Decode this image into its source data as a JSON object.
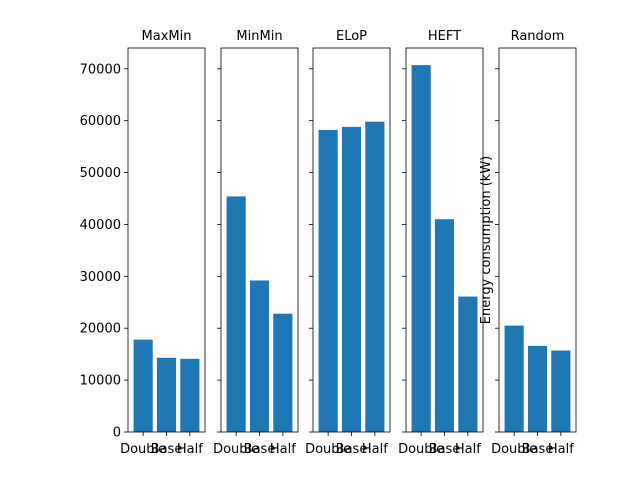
{
  "chart_data": {
    "type": "bar",
    "categories": [
      "Double",
      "Base",
      "Half"
    ],
    "bar_color": "#1f77b4",
    "ylim": [
      0,
      74000
    ],
    "yticks": [
      0,
      10000,
      20000,
      30000,
      40000,
      50000,
      60000,
      70000
    ],
    "ylabel": "Energy consumption (kW)",
    "panels": [
      {
        "title": "MaxMin",
        "values": [
          17800,
          14300,
          14100
        ]
      },
      {
        "title": "MinMin",
        "values": [
          45400,
          29200,
          22800
        ]
      },
      {
        "title": "ELoP",
        "values": [
          58200,
          58800,
          59800
        ]
      },
      {
        "title": "HEFT",
        "values": [
          70700,
          41000,
          26100
        ]
      },
      {
        "title": "Random",
        "values": [
          20500,
          16600,
          15700
        ]
      }
    ]
  }
}
